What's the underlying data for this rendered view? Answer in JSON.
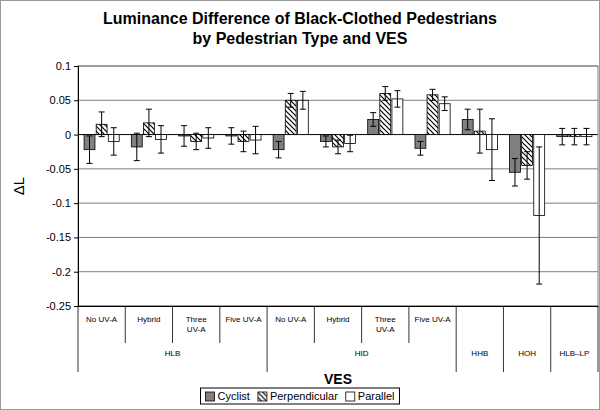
{
  "chart_data": {
    "type": "bar",
    "title": "Luminance Difference of Black-Clothed Pedestrians\nby Pedestrian Type and VES",
    "x_label": "VES",
    "y_label": "ΔL",
    "categories": [
      "No UV-A",
      "Hybrid",
      "Three UV-A",
      "Five UV-A",
      "No UV-A",
      "Hybrid",
      "Three UV-A",
      "Five UV-A",
      null,
      null,
      null
    ],
    "category_groups": [
      "HLB",
      "HLB",
      "HLB",
      "HLB",
      "HID",
      "HID",
      "HID",
      "HID",
      "HHB",
      "HOH",
      "HLB–LP"
    ],
    "series": [
      {
        "name": "Cyclist",
        "color": "#808080",
        "values": [
          -0.022,
          -0.018,
          -0.002,
          -0.002,
          -0.022,
          -0.01,
          0.022,
          -0.02,
          0.022,
          -0.055,
          -0.003
        ],
        "errors": [
          0.02,
          0.02,
          0.015,
          0.012,
          0.012,
          0.008,
          0.01,
          0.01,
          0.015,
          0.02,
          0.012
        ]
      },
      {
        "name": "Perpendicular",
        "color": "#000000",
        "values": [
          0.015,
          0.017,
          -0.01,
          -0.01,
          0.05,
          -0.018,
          0.06,
          0.058,
          0.005,
          -0.045,
          -0.003
        ],
        "errors": [
          0.018,
          0.02,
          0.012,
          0.015,
          0.01,
          0.01,
          0.01,
          0.008,
          0.032,
          0.02,
          0.012
        ]
      },
      {
        "name": "Parallel",
        "color": "#ffffff",
        "values": [
          -0.01,
          -0.007,
          -0.005,
          -0.008,
          0.05,
          -0.013,
          0.052,
          0.045,
          -0.022,
          -0.118,
          -0.003
        ],
        "errors": [
          0.02,
          0.02,
          0.015,
          0.02,
          0.013,
          0.012,
          0.012,
          0.01,
          0.045,
          0.1,
          0.012
        ]
      }
    ],
    "ylim": [
      -0.25,
      0.1
    ],
    "yticks": [
      -0.25,
      -0.2,
      -0.15,
      -0.1,
      -0.05,
      0,
      0.05,
      0.1
    ],
    "grid": true,
    "legend": "bottom"
  }
}
